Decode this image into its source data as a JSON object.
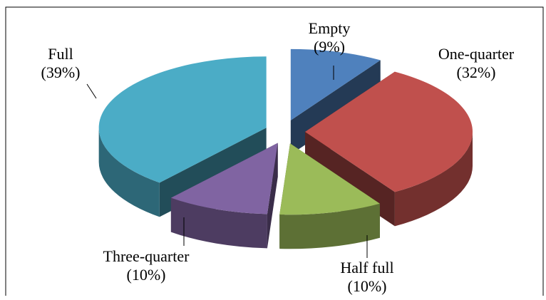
{
  "chart_data": {
    "type": "pie3d",
    "categories": [
      "Empty",
      "One-quarter",
      "Half full",
      "Three-quarter",
      "Full"
    ],
    "values": [
      9,
      32,
      10,
      10,
      39
    ],
    "value_labels": [
      "(9%)",
      "(32%)",
      "(10%)",
      "(10%)",
      "(39%)"
    ],
    "colors": [
      "#4f81bd",
      "#c0504d",
      "#9bbb59",
      "#8064a2",
      "#4bacc6"
    ]
  }
}
